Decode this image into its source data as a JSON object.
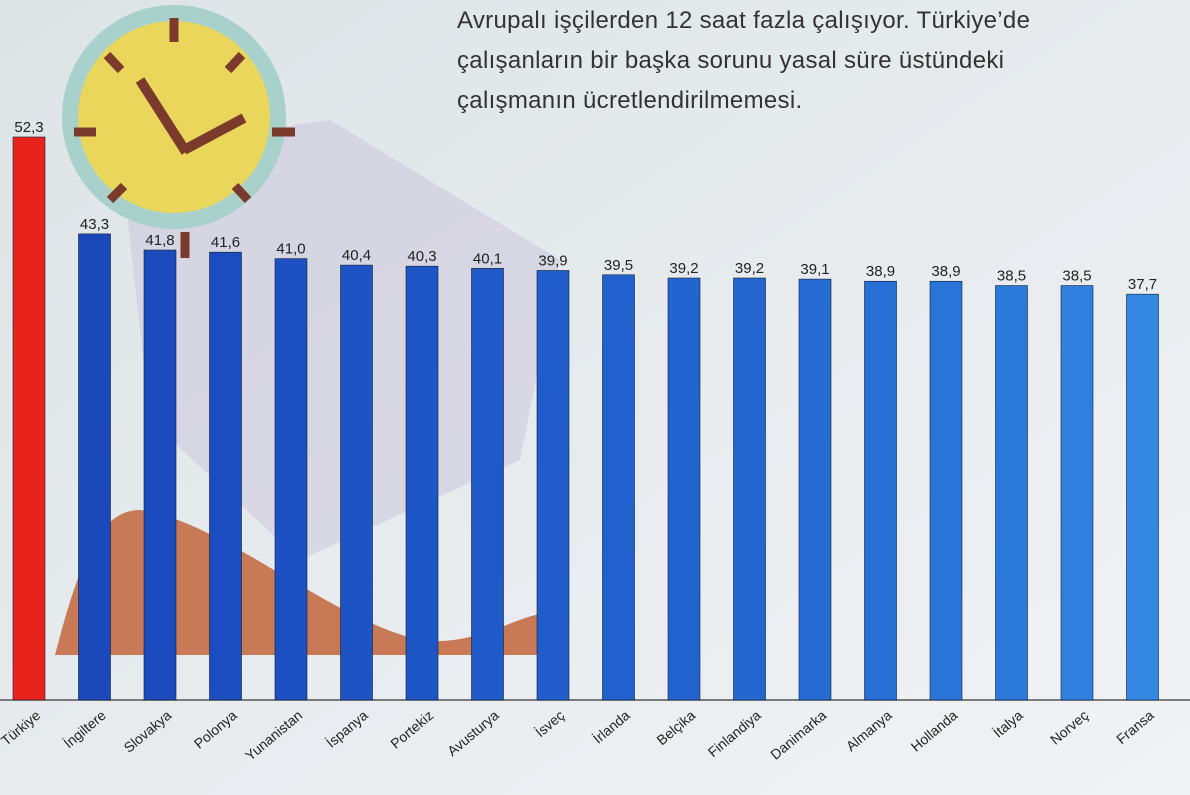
{
  "chart_data": {
    "type": "bar",
    "annotation_lines": [
      "Avrupalı işçilerden 12 saat fazla çalışıyor. Türkiye’de",
      "çalışanların bir başka sorunu yasal süre üstündeki",
      "çalışmanın ücretlendirilmemesi."
    ],
    "categories": [
      "Türkiye",
      "İngiltere",
      "Slovakya",
      "Polonya",
      "Yunanistan",
      "İspanya",
      "Portekiz",
      "Avusturya",
      "İsveç",
      "İrlanda",
      "Belçika",
      "Finlandiya",
      "Danimarka",
      "Almanya",
      "Hollanda",
      "İtalya",
      "Norveç",
      "Fransa"
    ],
    "values": [
      52.3,
      43.3,
      41.8,
      41.6,
      41.0,
      40.4,
      40.3,
      40.1,
      39.9,
      39.5,
      39.2,
      39.2,
      39.1,
      38.9,
      38.9,
      38.5,
      38.5,
      37.7
    ],
    "value_labels": [
      "52,3",
      "43,3",
      "41,8",
      "41,6",
      "41,0",
      "40,4",
      "40,3",
      "40,1",
      "39,9",
      "39,5",
      "39,2",
      "39,2",
      "39,1",
      "38,9",
      "38,9",
      "38,5",
      "38,5",
      "37,7"
    ],
    "colors": [
      "#e8231b",
      "#1b48bb",
      "#1c4bbe",
      "#1c4dc0",
      "#1d50c2",
      "#1e53c4",
      "#1f56c6",
      "#2059c8",
      "#215dca",
      "#2260cd",
      "#2363cf",
      "#2567d1",
      "#266bd3",
      "#286fd6",
      "#2a74d9",
      "#2c79dc",
      "#2f7fdf",
      "#3488e3"
    ]
  }
}
